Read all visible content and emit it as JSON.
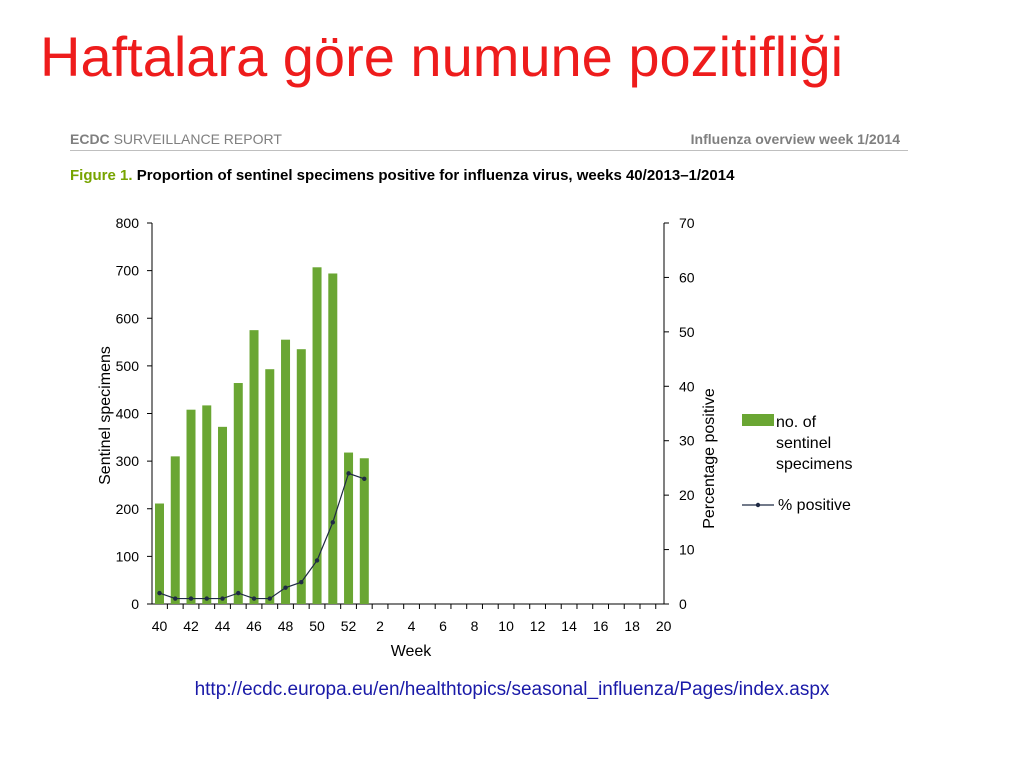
{
  "slide": {
    "title": "Haftalara göre numune pozitifliği",
    "title_color": "#ee1c1c"
  },
  "report": {
    "header_brand": "ECDC",
    "header_label": "SURVEILLANCE REPORT",
    "header_right": "Influenza overview week 1/2014"
  },
  "figure": {
    "label": "Figure 1.",
    "caption": "Proportion of sentinel specimens positive for influenza virus, weeks 40/2013–1/2014"
  },
  "source_url": "http://ecdc.europa.eu/en/healthtopics/seasonal_influenza/Pages/index.aspx",
  "link_color": "#1a1aa8",
  "chart_data": {
    "type": "bar",
    "xlabel": "Week",
    "ylabel_left": "Sentinel specimens",
    "ylabel_right": "Percentage positive",
    "ylim_left": [
      0,
      800
    ],
    "ylim_right": [
      0,
      70
    ],
    "yticks_left": [
      0,
      100,
      200,
      300,
      400,
      500,
      600,
      700,
      800
    ],
    "yticks_right": [
      0,
      10,
      20,
      30,
      40,
      50,
      60,
      70
    ],
    "x_tick_labels": [
      "40",
      "42",
      "44",
      "46",
      "48",
      "50",
      "52",
      "2",
      "4",
      "6",
      "8",
      "10",
      "12",
      "14",
      "16",
      "18",
      "20"
    ],
    "weeks": [
      "40",
      "41",
      "42",
      "43",
      "44",
      "45",
      "46",
      "47",
      "48",
      "49",
      "50",
      "51",
      "52",
      "1",
      "2",
      "3",
      "4",
      "5",
      "6",
      "7",
      "8",
      "9",
      "10",
      "11",
      "12",
      "13",
      "14",
      "15",
      "16",
      "17",
      "18",
      "19",
      "20"
    ],
    "grid": false,
    "legend_position": "right",
    "series": [
      {
        "name": "no. of sentinel specimens",
        "type": "bar",
        "axis": "left",
        "color": "#6aa633",
        "values": [
          211,
          310,
          408,
          417,
          372,
          464,
          575,
          493,
          555,
          535,
          707,
          694,
          318,
          306
        ]
      },
      {
        "name": "% positive",
        "type": "line",
        "axis": "right",
        "color": "#1f2a44",
        "values": [
          2,
          1,
          1,
          1,
          1,
          2,
          1,
          1,
          3,
          4,
          8,
          15,
          24,
          23
        ]
      }
    ]
  }
}
